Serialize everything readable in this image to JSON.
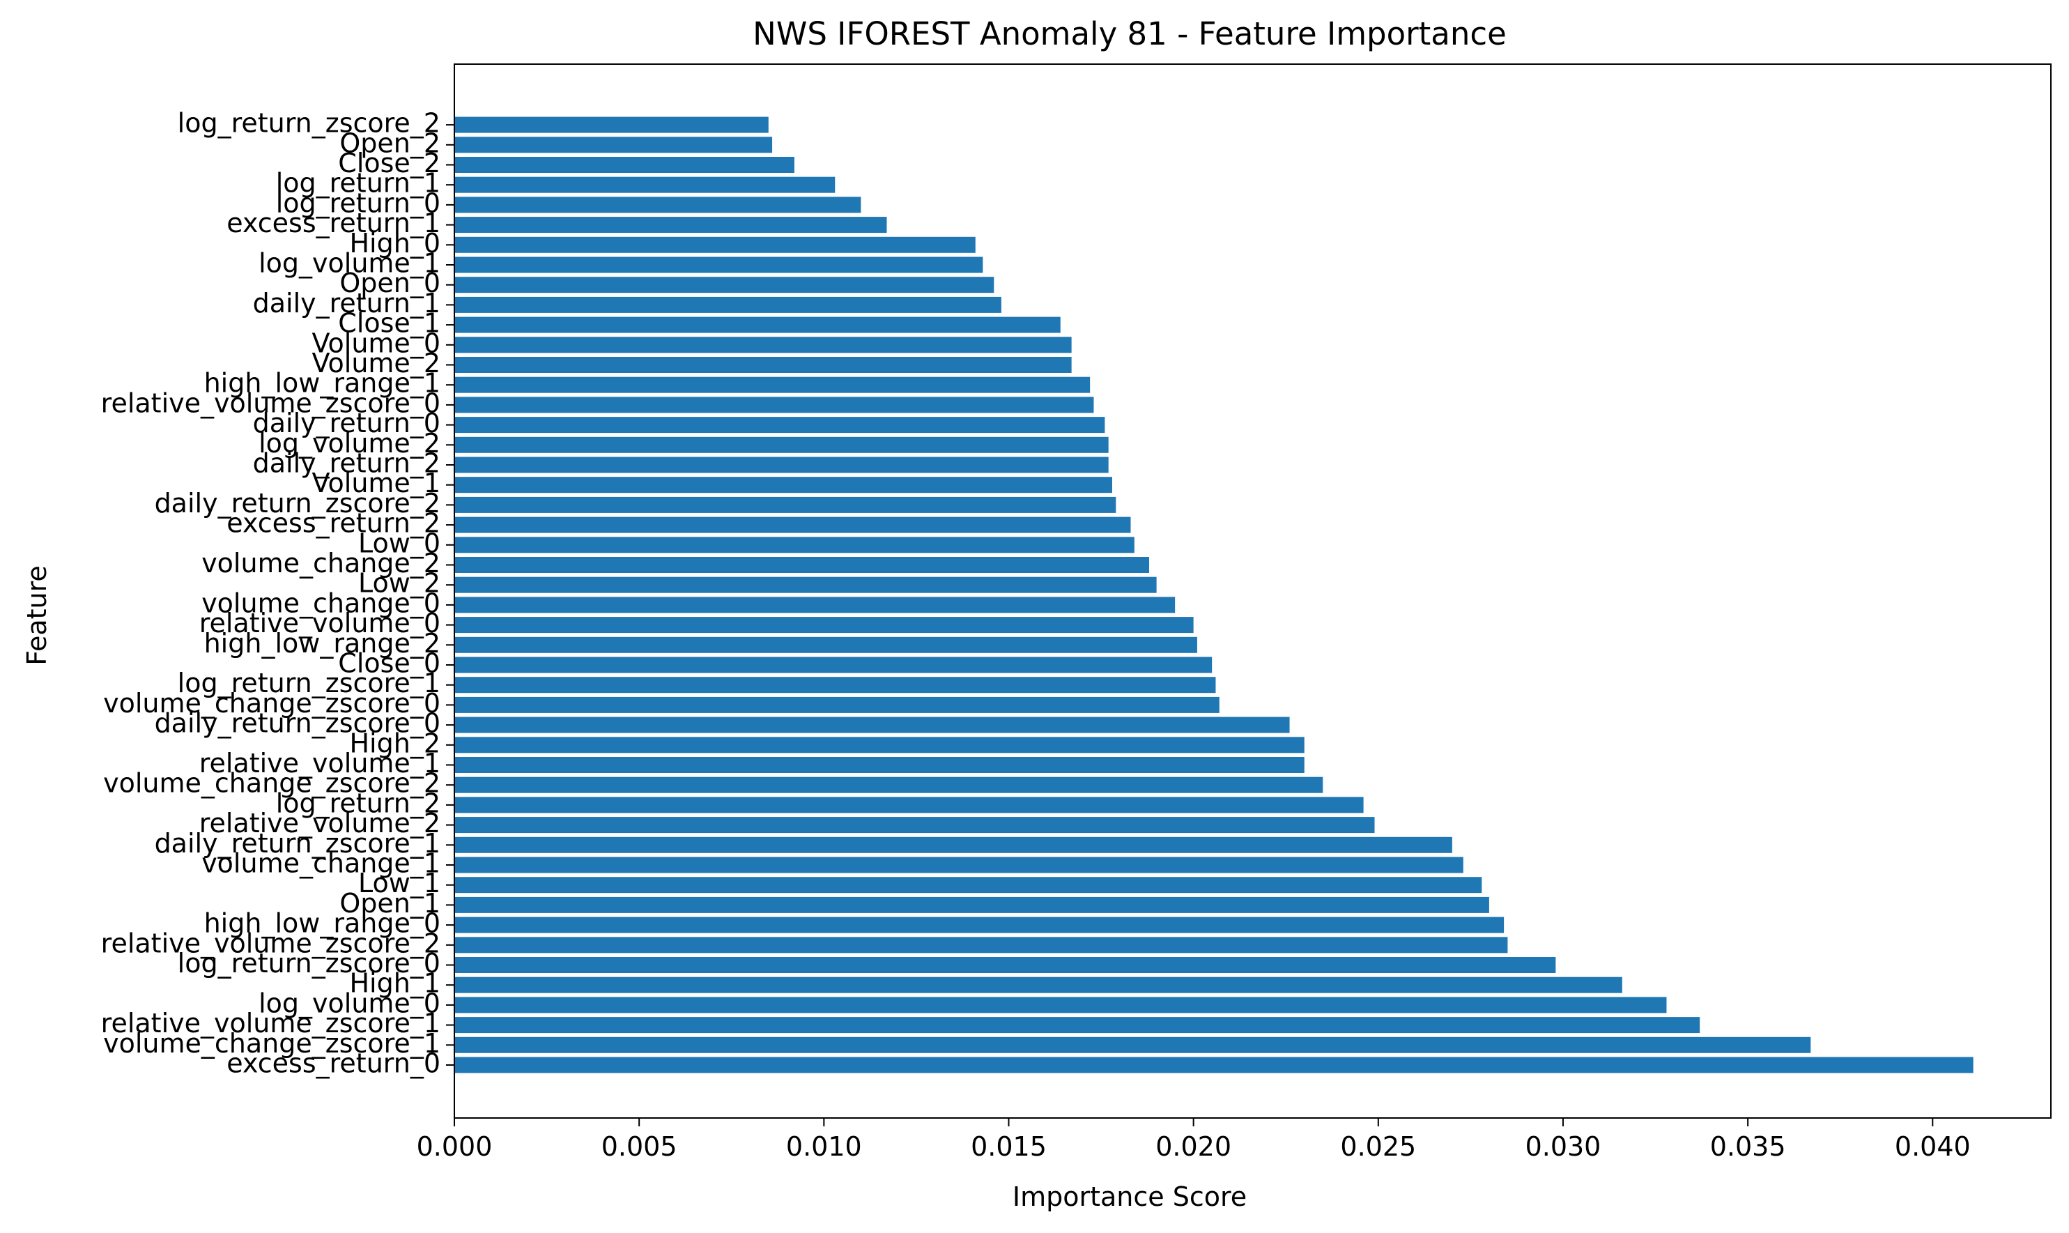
{
  "chart_data": {
    "type": "bar",
    "orientation": "horizontal",
    "title": "NWS IFOREST Anomaly 81 - Feature Importance",
    "xlabel": "Importance Score",
    "ylabel": "Feature",
    "xlim": [
      0.0,
      0.0432
    ],
    "xticks": [
      "0.000",
      "0.005",
      "0.010",
      "0.015",
      "0.020",
      "0.025",
      "0.030",
      "0.035",
      "0.040"
    ],
    "grid": false,
    "color": "#1f77b4",
    "categories": [
      "excess_return_0",
      "volume_change_zscore_1",
      "relative_volume_zscore_1",
      "log_volume_0",
      "High_1",
      "log_return_zscore_0",
      "relative_volume_zscore_2",
      "high_low_range_0",
      "Open_1",
      "Low_1",
      "volume_change_1",
      "daily_return_zscore_1",
      "relative_volume_2",
      "log_return_2",
      "volume_change_zscore_2",
      "relative_volume_1",
      "High_2",
      "daily_return_zscore_0",
      "volume_change_zscore_0",
      "log_return_zscore_1",
      "Close_0",
      "high_low_range_2",
      "relative_volume_0",
      "volume_change_0",
      "Low_2",
      "volume_change_2",
      "Low_0",
      "excess_return_2",
      "daily_return_zscore_2",
      "Volume_1",
      "daily_return_2",
      "log_volume_2",
      "daily_return_0",
      "relative_volume_zscore_0",
      "high_low_range_1",
      "Volume_2",
      "Volume_0",
      "Close_1",
      "daily_return_1",
      "Open_0",
      "log_volume_1",
      "High_0",
      "excess_return_1",
      "log_return_0",
      "log_return_1",
      "Close_2",
      "Open_2",
      "log_return_zscore_2"
    ],
    "values": [
      0.0411,
      0.0367,
      0.0337,
      0.0328,
      0.0316,
      0.0298,
      0.0285,
      0.0284,
      0.028,
      0.0278,
      0.0273,
      0.027,
      0.0249,
      0.0246,
      0.0235,
      0.023,
      0.023,
      0.0226,
      0.0207,
      0.0206,
      0.0205,
      0.0201,
      0.02,
      0.0195,
      0.019,
      0.0188,
      0.0184,
      0.0183,
      0.0179,
      0.0178,
      0.0177,
      0.0177,
      0.0176,
      0.0173,
      0.0172,
      0.0167,
      0.0167,
      0.0164,
      0.0148,
      0.0146,
      0.0143,
      0.0141,
      0.0117,
      0.011,
      0.0103,
      0.0092,
      0.0086,
      0.0085
    ]
  }
}
